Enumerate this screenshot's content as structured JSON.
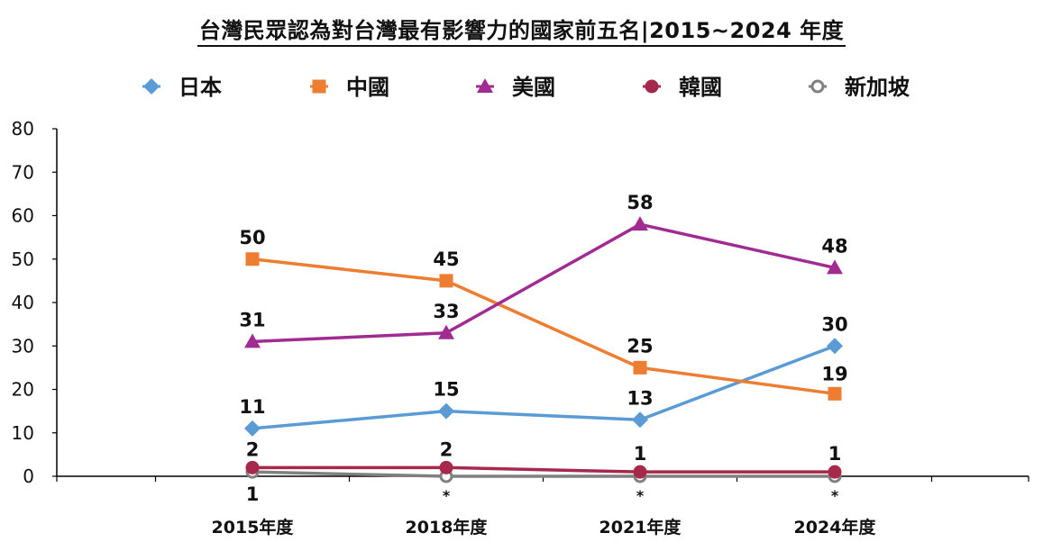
{
  "chart_data": {
    "type": "line",
    "title": "台灣民眾認為對台灣最有影響力的國家前五名|2015~2024 年度",
    "categories": [
      "2015年度",
      "2018年度",
      "2021年度",
      "2024年度"
    ],
    "xlabel": "",
    "ylabel": "",
    "ylim": [
      0,
      80
    ],
    "yticks": [
      "0",
      "10",
      "20",
      "30",
      "40",
      "50",
      "60",
      "70",
      "80"
    ],
    "grid": false,
    "legend_position": "top",
    "series": [
      {
        "name": "日本",
        "values": [
          11,
          15,
          13,
          30
        ],
        "labels": [
          "11",
          "15",
          "13",
          "30"
        ],
        "color": "#5B9BD5",
        "marker": "diamond"
      },
      {
        "name": "中國",
        "values": [
          50,
          45,
          25,
          19
        ],
        "labels": [
          "50",
          "45",
          "25",
          "19"
        ],
        "color": "#ED7D31",
        "marker": "square"
      },
      {
        "name": "美國",
        "values": [
          31,
          33,
          58,
          48
        ],
        "labels": [
          "31",
          "33",
          "58",
          "48"
        ],
        "color": "#A02B93",
        "marker": "triangle"
      },
      {
        "name": "韓國",
        "values": [
          2,
          2,
          1,
          1
        ],
        "labels": [
          "2",
          "2",
          "1",
          "1"
        ],
        "color": "#A6294B",
        "marker": "circle"
      },
      {
        "name": "新加坡",
        "values": [
          1,
          0,
          0,
          0
        ],
        "labels": [
          "1",
          "*",
          "*",
          "*"
        ],
        "color": "#808080",
        "marker": "open-circle"
      }
    ]
  }
}
